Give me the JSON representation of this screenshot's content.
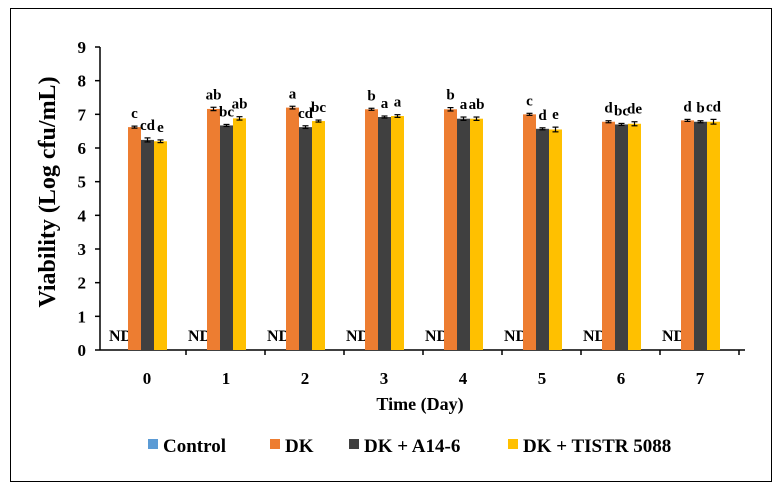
{
  "chart_data": {
    "type": "bar",
    "title": "",
    "xlabel": "Time (Day)",
    "ylabel": "Viability (Log cfu/mL)",
    "ylim": [
      0,
      9
    ],
    "yticks": [
      "0",
      "1",
      "2",
      "3",
      "4",
      "5",
      "6",
      "7",
      "8",
      "9"
    ],
    "categories": [
      "0",
      "1",
      "2",
      "3",
      "4",
      "5",
      "6",
      "7"
    ],
    "series": [
      {
        "name": "Control",
        "color": "#5B9BD5",
        "values": [
          0,
          0,
          0,
          0,
          0,
          0,
          0,
          0
        ],
        "errors": [
          0,
          0,
          0,
          0,
          0,
          0,
          0,
          0
        ],
        "labels": [
          "ND",
          "ND",
          "ND",
          "ND",
          "ND",
          "ND",
          "ND",
          "ND"
        ]
      },
      {
        "name": "DK",
        "color": "#ED7D31",
        "values": [
          6.62,
          7.16,
          7.2,
          7.15,
          7.15,
          7.0,
          6.78,
          6.82
        ],
        "errors": [
          0.03,
          0.05,
          0.04,
          0.03,
          0.05,
          0.03,
          0.03,
          0.03
        ],
        "labels": [
          "c",
          "ab",
          "a",
          "b",
          "b",
          "c",
          "d",
          "d"
        ]
      },
      {
        "name": "DK + A14-6",
        "color": "#404040",
        "values": [
          6.24,
          6.67,
          6.62,
          6.92,
          6.87,
          6.57,
          6.7,
          6.78
        ],
        "errors": [
          0.06,
          0.03,
          0.04,
          0.03,
          0.05,
          0.03,
          0.03,
          0.03
        ],
        "labels": [
          "cd",
          "bc",
          "cd",
          "a",
          "a",
          "d",
          "bc",
          "b"
        ]
      },
      {
        "name": "DK + TISTR 5088",
        "color": "#FFC000",
        "values": [
          6.2,
          6.88,
          6.8,
          6.95,
          6.87,
          6.55,
          6.72,
          6.78
        ],
        "errors": [
          0.04,
          0.05,
          0.03,
          0.04,
          0.05,
          0.07,
          0.06,
          0.07
        ],
        "labels": [
          "e",
          "ab",
          "bc",
          "a",
          "ab",
          "e",
          "de",
          "cd"
        ]
      }
    ],
    "legend": "bottom"
  }
}
